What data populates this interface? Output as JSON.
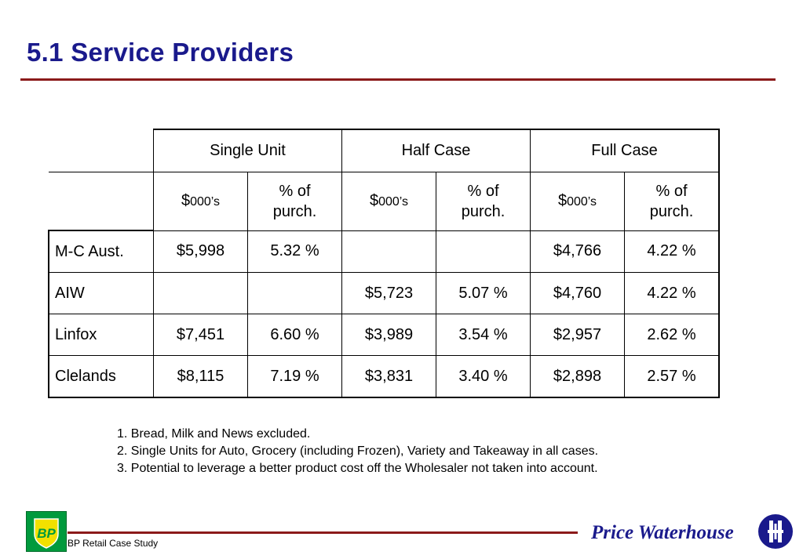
{
  "header": {
    "title": "5.1  Service Providers"
  },
  "table": {
    "groups": [
      "Single Unit",
      "Half Case",
      "Full Case"
    ],
    "subheaders": [
      {
        "prefix": "$",
        "unit": "000’s"
      },
      {
        "line1": "% of",
        "line2": "purch."
      },
      {
        "prefix": "$",
        "unit": "000’s"
      },
      {
        "line1": "% of",
        "line2": "purch."
      },
      {
        "prefix": "$",
        "unit": "000’s"
      },
      {
        "line1": "% of",
        "line2": "purch."
      }
    ],
    "rows": [
      {
        "name": "M-C Aust.",
        "cells": [
          "$5,998",
          "5.32 %",
          "",
          "",
          "$4,766",
          "4.22 %"
        ]
      },
      {
        "name": "AIW",
        "cells": [
          "",
          "",
          "$5,723",
          "5.07 %",
          "$4,760",
          "4.22 %"
        ]
      },
      {
        "name": "Linfox",
        "cells": [
          "$7,451",
          "6.60 %",
          "$3,989",
          "3.54 %",
          "$2,957",
          "2.62 %"
        ]
      },
      {
        "name": "Clelands",
        "cells": [
          "$8,115",
          "7.19 %",
          "$3,831",
          "3.40 %",
          "$2,898",
          "2.57 %"
        ]
      }
    ]
  },
  "notes": [
    "1. Bread, Milk and News excluded.",
    "2. Single Units for Auto, Grocery (including Frozen), Variety and Takeaway in all cases.",
    "3. Potential to leverage a better product cost off the Wholesaler not taken into account."
  ],
  "footer": {
    "left_logo_text": "BP",
    "caption": "BP Retail Case Study",
    "firm_name": "Price Waterhouse"
  },
  "colors": {
    "title": "#1a1a8c",
    "rule": "#8b1a1a",
    "bp_green": "#009a3d",
    "bp_yellow": "#f2e100"
  },
  "icons": {
    "left_logo": "bp-shield-logo",
    "right_logo": "price-waterhouse-logo"
  }
}
